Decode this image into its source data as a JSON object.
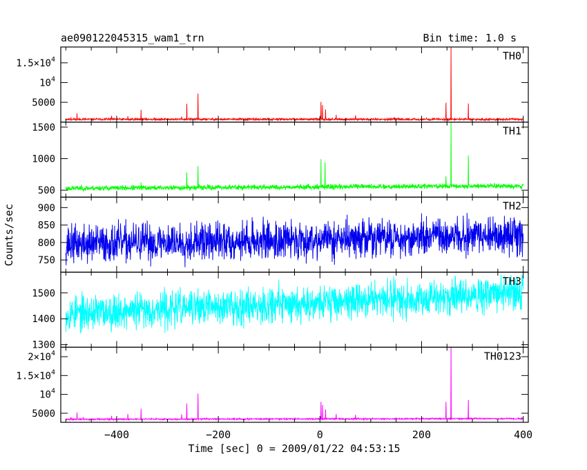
{
  "header": {
    "title": "ae090122045315_wam1_trn",
    "bin_time": "Bin time: 1.0 s"
  },
  "chart_data": {
    "type": "line",
    "ylabel": "Counts/sec",
    "xlabel": "Time [sec] 0 = 2009/01/22 04:53:15",
    "xlim": [
      -510,
      410
    ],
    "x_ticks": [
      -400,
      -200,
      0,
      200,
      400
    ],
    "x_tick_labels": [
      "−400",
      "−200",
      "0",
      "200",
      "400"
    ],
    "x_range": [
      -500,
      400
    ],
    "panels": [
      {
        "name": "TH0",
        "color": "#ff0000",
        "ylim": [
          0,
          19000
        ],
        "yticks": [
          {
            "value": 5000,
            "mant": "5000",
            "exp": ""
          },
          {
            "value": 10000,
            "mant": "10",
            "exp": "4"
          },
          {
            "value": 15000,
            "mant": "1.5×10",
            "exp": "4"
          }
        ],
        "baseline": 700,
        "noise": 180,
        "trend": 0,
        "seed": 11,
        "spikes": [
          [
            -490,
            1200
          ],
          [
            -478,
            2200
          ],
          [
            -466,
            900
          ],
          [
            -452,
            700
          ],
          [
            -420,
            1000
          ],
          [
            -410,
            1600
          ],
          [
            -378,
            1500
          ],
          [
            -352,
            3100
          ],
          [
            -302,
            700
          ],
          [
            -272,
            1400
          ],
          [
            -262,
            4600
          ],
          [
            -258,
            1100
          ],
          [
            -240,
            7200
          ],
          [
            -205,
            600
          ],
          [
            -150,
            700
          ],
          [
            -80,
            800
          ],
          [
            -10,
            600
          ],
          [
            2,
            5100
          ],
          [
            5,
            4300
          ],
          [
            11,
            3200
          ],
          [
            32,
            1800
          ],
          [
            70,
            1700
          ],
          [
            75,
            900
          ],
          [
            110,
            700
          ],
          [
            248,
            4900
          ],
          [
            258,
            18900
          ],
          [
            292,
            4700
          ]
        ]
      },
      {
        "name": "TH1",
        "color": "#00ff00",
        "ylim": [
          390,
          1580
        ],
        "yticks": [
          {
            "value": 500,
            "mant": "500",
            "exp": ""
          },
          {
            "value": 1000,
            "mant": "1000",
            "exp": ""
          },
          {
            "value": 1500,
            "mant": "1500",
            "exp": ""
          }
        ],
        "baseline": 530,
        "noise": 28,
        "trend": 40,
        "seed": 23,
        "spikes": [
          [
            -472,
            560
          ],
          [
            -352,
            620
          ],
          [
            -262,
            780
          ],
          [
            -240,
            880
          ],
          [
            2,
            990
          ],
          [
            10,
            940
          ],
          [
            70,
            600
          ],
          [
            248,
            720
          ],
          [
            258,
            1580
          ],
          [
            292,
            1050
          ]
        ]
      },
      {
        "name": "TH2",
        "color": "#0000ee",
        "ylim": [
          715,
          930
        ],
        "yticks": [
          {
            "value": 750,
            "mant": "750",
            "exp": ""
          },
          {
            "value": 800,
            "mant": "800",
            "exp": ""
          },
          {
            "value": 850,
            "mant": "850",
            "exp": ""
          },
          {
            "value": 900,
            "mant": "900",
            "exp": ""
          }
        ],
        "baseline": 795,
        "noise": 38,
        "trend": 25,
        "seed": 37,
        "spikes": []
      },
      {
        "name": "TH3",
        "color": "#00ffff",
        "ylim": [
          1290,
          1580
        ],
        "yticks": [
          {
            "value": 1300,
            "mant": "1300",
            "exp": ""
          },
          {
            "value": 1400,
            "mant": "1400",
            "exp": ""
          },
          {
            "value": 1500,
            "mant": "1500",
            "exp": ""
          }
        ],
        "baseline": 1420,
        "noise": 48,
        "trend": 80,
        "seed": 53,
        "spikes": []
      },
      {
        "name": "TH0123",
        "color": "#ff00ff",
        "ylim": [
          2600,
          22500
        ],
        "yticks": [
          {
            "value": 5000,
            "mant": "5000",
            "exp": ""
          },
          {
            "value": 10000,
            "mant": "10",
            "exp": "4"
          },
          {
            "value": 15000,
            "mant": "1.5×10",
            "exp": "4"
          },
          {
            "value": 20000,
            "mant": "2×10",
            "exp": "4"
          }
        ],
        "baseline": 3400,
        "noise": 130,
        "trend": 180,
        "seed": 71,
        "spikes": [
          [
            -490,
            4000
          ],
          [
            -478,
            5200
          ],
          [
            -466,
            4000
          ],
          [
            -410,
            4300
          ],
          [
            -378,
            4800
          ],
          [
            -352,
            6200
          ],
          [
            -272,
            4700
          ],
          [
            -262,
            7600
          ],
          [
            -240,
            10200
          ],
          [
            2,
            8000
          ],
          [
            5,
            7200
          ],
          [
            11,
            6000
          ],
          [
            32,
            4800
          ],
          [
            70,
            4600
          ],
          [
            248,
            8000
          ],
          [
            258,
            22500
          ],
          [
            292,
            8500
          ]
        ]
      }
    ]
  }
}
